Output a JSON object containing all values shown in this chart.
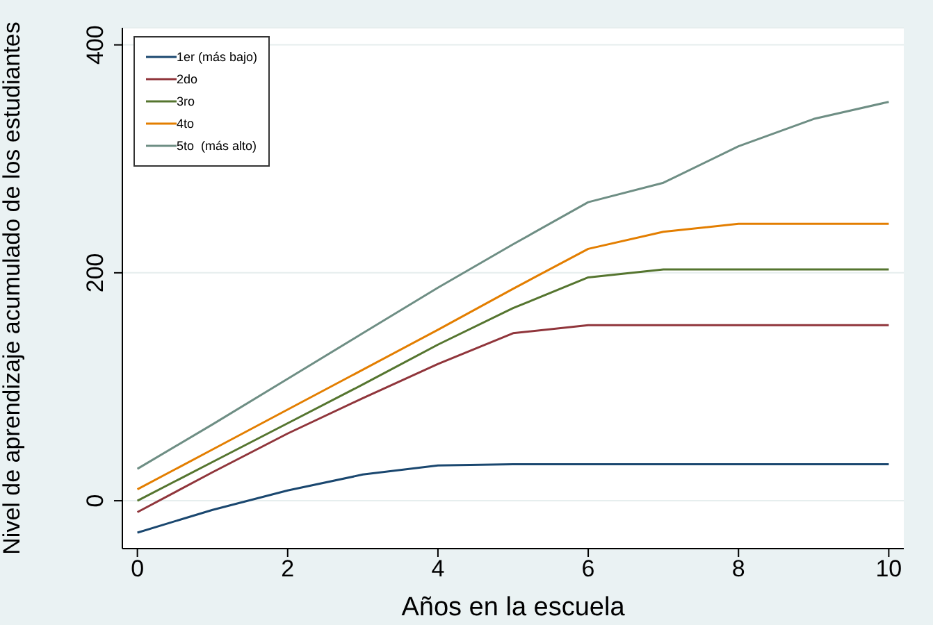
{
  "chart_data": {
    "type": "line",
    "xlabel": "Años en la escuela",
    "ylabel": "Nivel de aprendizaje acumulado de los estudiantes",
    "x": [
      0,
      1,
      2,
      3,
      4,
      5,
      6,
      7,
      8,
      9,
      10
    ],
    "series": [
      {
        "name": "1er (más bajo)",
        "color": "#1a476f",
        "values": [
          -28,
          -8,
          9,
          23,
          31,
          32,
          32,
          32,
          32,
          32,
          32
        ]
      },
      {
        "name": "2do",
        "color": "#90353b",
        "values": [
          -10,
          25,
          59,
          90,
          120,
          147,
          154,
          154,
          154,
          154,
          154
        ]
      },
      {
        "name": "3ro",
        "color": "#55752f",
        "values": [
          0,
          34,
          68,
          102,
          137,
          169,
          196,
          203,
          203,
          203,
          203
        ]
      },
      {
        "name": "4to",
        "color": "#e37e00",
        "values": [
          10,
          45,
          80,
          115,
          150,
          186,
          221,
          236,
          243,
          243,
          243
        ]
      },
      {
        "name": "5to  (más alto)",
        "color": "#6e8e84",
        "values": [
          28,
          67,
          107,
          147,
          187,
          225,
          262,
          279,
          311,
          335,
          350
        ]
      }
    ],
    "xlim": [
      -0.2,
      10.2
    ],
    "xticks": [
      0,
      2,
      4,
      6,
      8,
      10
    ],
    "ylim": [
      -42,
      415
    ],
    "yticks": [
      0,
      200,
      400
    ],
    "grid": "y",
    "legend": "top left",
    "marker": "none",
    "line_style": "solid"
  }
}
